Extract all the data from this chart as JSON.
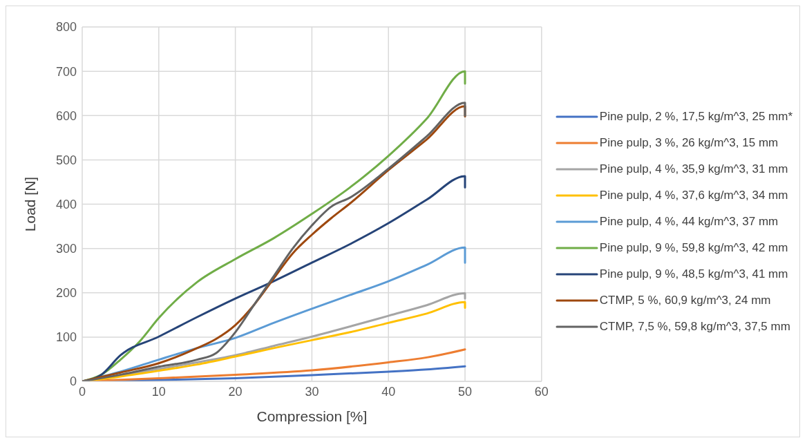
{
  "chart_data": {
    "type": "line",
    "xlabel": "Compression [%]",
    "ylabel": "Load [N]",
    "xlim": [
      0,
      60
    ],
    "xticks": [
      0,
      10,
      20,
      30,
      40,
      50,
      60
    ],
    "ylim": [
      0,
      800
    ],
    "yticks": [
      0,
      100,
      200,
      300,
      400,
      500,
      600,
      700,
      800
    ],
    "grid": true,
    "legend": "right",
    "marker": "none",
    "line_style": "solid",
    "series": [
      {
        "name": "Pine pulp, 2 %, 17,5 kg/m^3, 25 mm*",
        "color": "#4472c4",
        "x": [
          0,
          10,
          20,
          30,
          40,
          45,
          50
        ],
        "values": [
          0,
          3,
          7,
          14,
          22,
          27,
          34
        ]
      },
      {
        "name": "Pine pulp, 3 %, 26 kg/m^3, 15 mm",
        "color": "#ed7d31",
        "x": [
          0,
          10,
          20,
          30,
          40,
          45,
          50
        ],
        "values": [
          0,
          7,
          15,
          25,
          43,
          54,
          72
        ]
      },
      {
        "name": "Pine pulp, 4 %, 35,9 kg/m^3, 31 mm",
        "color": "#a5a5a5",
        "x": [
          0,
          5,
          10,
          15,
          20,
          25,
          30,
          35,
          40,
          45,
          50,
          50
        ],
        "values": [
          0,
          13,
          28,
          43,
          59,
          80,
          101,
          124,
          148,
          172,
          199,
          187
        ]
      },
      {
        "name": "Pine pulp, 4 %, 37,6 kg/m^3, 34 mm",
        "color": "#ffc000",
        "x": [
          0,
          5,
          10,
          15,
          20,
          25,
          30,
          35,
          40,
          45,
          50,
          50
        ],
        "values": [
          0,
          11,
          24,
          38,
          56,
          75,
          93,
          111,
          132,
          153,
          179,
          166
        ]
      },
      {
        "name": "Pine pulp, 4 %, 44 kg/m^3, 37 mm",
        "color": "#5b9bd5",
        "x": [
          0,
          5,
          10,
          15,
          20,
          25,
          30,
          35,
          40,
          45,
          50,
          50
        ],
        "values": [
          0,
          22,
          49,
          75,
          98,
          132,
          164,
          195,
          226,
          263,
          302,
          268
        ]
      },
      {
        "name": "Pine pulp, 9 %, 59,8 kg/m^3, 42 mm",
        "color": "#70ad47",
        "x": [
          0,
          2.5,
          5,
          7.5,
          10,
          15,
          20,
          25,
          30,
          35,
          40,
          45,
          50,
          50
        ],
        "values": [
          0,
          15,
          49,
          90,
          143,
          224,
          276,
          323,
          378,
          438,
          509,
          593,
          700,
          672
        ]
      },
      {
        "name": "Pine pulp, 9 %, 48,5 kg/m^3, 41 mm",
        "color": "#264478",
        "x": [
          0,
          2.5,
          5,
          10,
          15,
          20,
          25,
          30,
          35,
          40,
          45,
          50,
          50
        ],
        "values": [
          0,
          15,
          59,
          101,
          145,
          187,
          226,
          268,
          310,
          357,
          410,
          463,
          438
        ]
      },
      {
        "name": "CTMP, 5 %, 60,9 kg/m^3, 24 mm",
        "color": "#9e480e",
        "x": [
          0,
          5,
          10,
          15,
          17.5,
          20,
          22.5,
          25,
          27.5,
          30,
          32.5,
          35,
          40,
          45,
          50,
          50
        ],
        "values": [
          0,
          20,
          41,
          75,
          96,
          127,
          174,
          232,
          289,
          331,
          368,
          402,
          477,
          546,
          621,
          598
        ]
      },
      {
        "name": "CTMP, 7,5 %, 59,8 kg/m^3, 37,5 mm",
        "color": "#636363",
        "x": [
          0,
          5,
          10,
          15,
          17.5,
          20,
          22.5,
          25,
          27.5,
          30,
          32.5,
          35,
          40,
          45,
          50,
          50
        ],
        "values": [
          0,
          15,
          33,
          49,
          64,
          111,
          174,
          237,
          300,
          352,
          394,
          415,
          480,
          553,
          629,
          600
        ]
      }
    ]
  }
}
